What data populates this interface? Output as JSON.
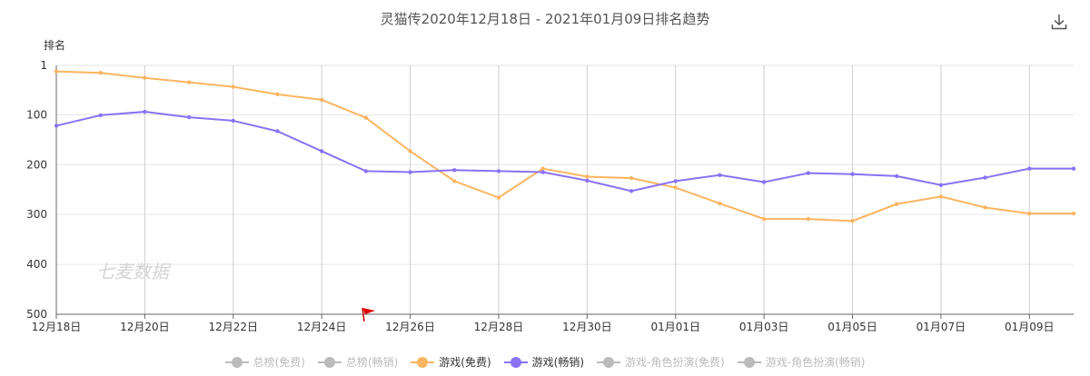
{
  "header": {
    "title": "灵猫传2020年12月18日 - 2021年01月09日排名趋势"
  },
  "toolbar": {
    "download_icon": "download-icon"
  },
  "watermark": "七麦数据",
  "chart_data": {
    "type": "line",
    "ylabel": "排名",
    "y_inverted": true,
    "ylim": [
      1,
      500
    ],
    "y_ticks": [
      1,
      100,
      200,
      300,
      400,
      500
    ],
    "x_labels": [
      "12月18日",
      "12月20日",
      "12月22日",
      "12月24日",
      "12月26日",
      "12月28日",
      "12月30日",
      "01月01日",
      "01月03日",
      "01月05日",
      "01月07日",
      "01月09日"
    ],
    "x": [
      "12月18日",
      "12月19日",
      "12月20日",
      "12月21日",
      "12月22日",
      "12月23日",
      "12月24日",
      "12月25日",
      "12月26日",
      "12月27日",
      "12月28日",
      "12月29日",
      "12月30日",
      "12月31日",
      "01月01日",
      "01月02日",
      "01月03日",
      "01月04日",
      "01月05日",
      "01月06日",
      "01月07日",
      "01月08日",
      "01月09日",
      "01月10日"
    ],
    "series": [
      {
        "name": "游戏(免费)",
        "color": "#FBB561",
        "values": [
          13,
          16,
          26,
          35,
          44,
          59,
          70,
          106,
          173,
          233,
          266,
          208,
          224,
          227,
          246,
          278,
          309,
          309,
          313,
          279,
          264,
          286,
          298,
          298
        ]
      },
      {
        "name": "游戏(畅销)",
        "color": "#8A72F5",
        "values": [
          122,
          101,
          94,
          105,
          112,
          133,
          173,
          213,
          215,
          211,
          213,
          215,
          232,
          253,
          233,
          221,
          235,
          217,
          219,
          223,
          241,
          226,
          208,
          208
        ]
      }
    ],
    "grid": true,
    "legend_placement": "bottom",
    "legend": [
      {
        "name": "总榜(免费)",
        "color": "#BBBBBB",
        "active": false
      },
      {
        "name": "总榜(畅销)",
        "color": "#BBBBBB",
        "active": false
      },
      {
        "name": "游戏(免费)",
        "color": "#FBB561",
        "active": true
      },
      {
        "name": "游戏(畅销)",
        "color": "#8A72F5",
        "active": true
      },
      {
        "name": "游戏-角色扮演(免费)",
        "color": "#BBBBBB",
        "active": false
      },
      {
        "name": "游戏-角色扮演(畅销)",
        "color": "#BBBBBB",
        "active": false
      }
    ]
  }
}
